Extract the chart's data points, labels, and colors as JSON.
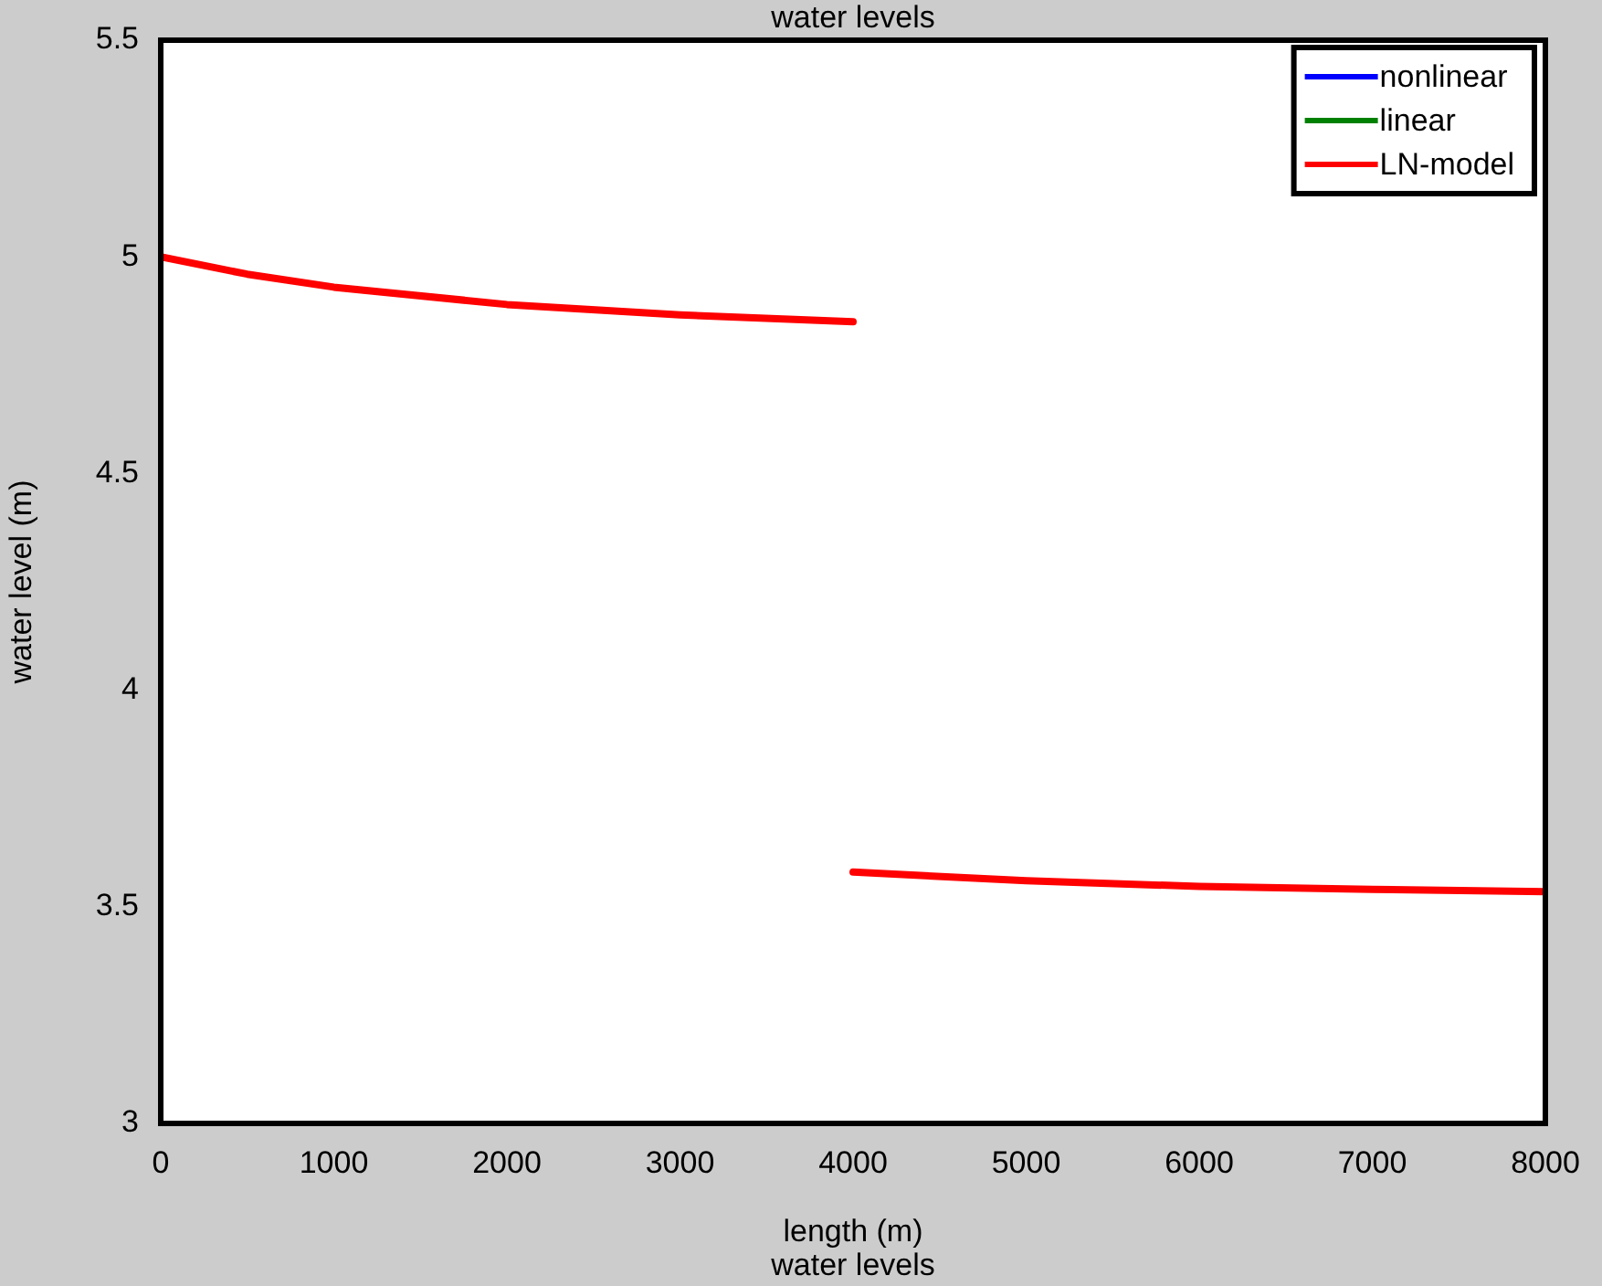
{
  "chart_data": {
    "type": "line",
    "title": "water levels",
    "xlabel": "length (m)",
    "ylabel": "water level (m)",
    "annotations": [
      "water levels"
    ],
    "series": [
      {
        "name": "nonlinear",
        "color": "#0000ff"
      },
      {
        "name": "linear",
        "color": "#008000"
      },
      {
        "name": "LN-model",
        "color": "#ff0000",
        "x": [
          0,
          500,
          1000,
          2000,
          3000,
          4000
        ],
        "values": [
          5.0,
          4.96,
          4.93,
          4.89,
          4.866,
          4.85
        ]
      },
      {
        "color": "#ff0000",
        "x": [
          4000,
          5000,
          6000,
          7000,
          8000
        ],
        "values": [
          3.58,
          3.56,
          3.547,
          3.54,
          3.535
        ]
      }
    ],
    "xlim": [
      0,
      8000
    ],
    "xticks": [
      0,
      1000,
      2000,
      3000,
      4000,
      5000,
      6000,
      7000,
      8000
    ],
    "ylim": [
      3,
      5.5
    ],
    "yticks": [
      3,
      3.5,
      4,
      4.5,
      5,
      5.5
    ],
    "legend": "top right",
    "marker": "none",
    "line_style": "solid"
  }
}
